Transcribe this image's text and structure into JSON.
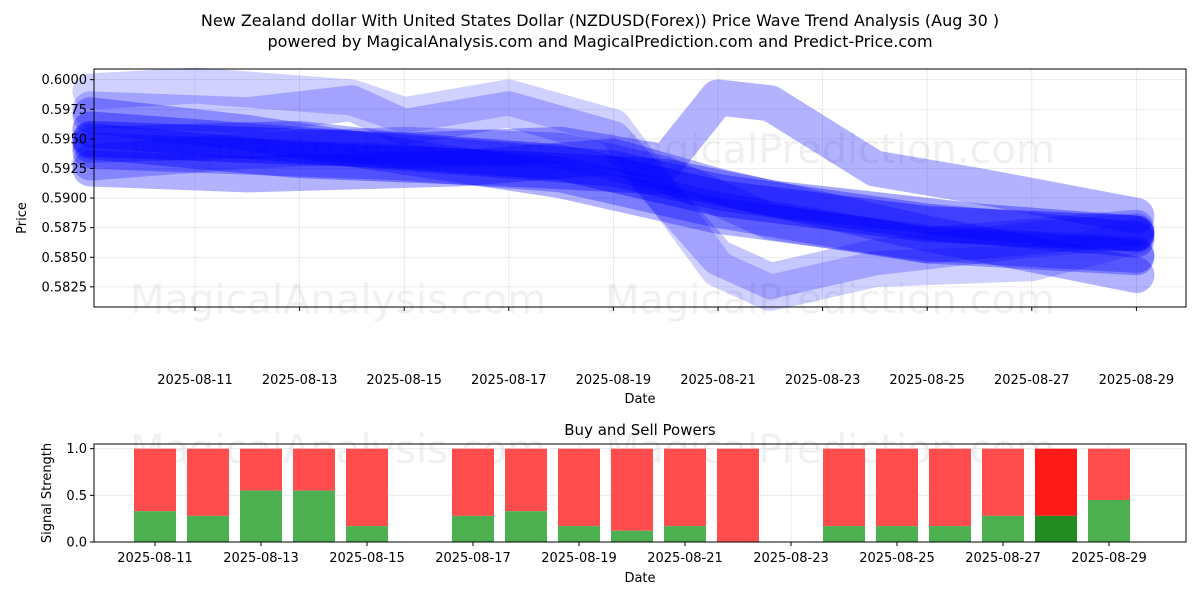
{
  "header": {
    "title": "New Zealand dollar With United States Dollar (NZDUSD(Forex)) Price Wave Trend Analysis (Aug 30 )",
    "subtitle": "powered by MagicalAnalysis.com and MagicalPrediction.com and Predict-Price.com"
  },
  "watermarks": [
    "MagicalAnalysis.com",
    "MagicalPrediction.com"
  ],
  "colors": {
    "wave": "#0000ff",
    "buy": "#4caf50",
    "sell": "#ff4d4d",
    "buy_strong": "#228b22",
    "sell_strong": "#ff1a1a"
  },
  "chart_data": [
    {
      "type": "line",
      "xlabel": "Date",
      "ylabel": "Price",
      "ylim": [
        0.5808,
        0.6009
      ],
      "yticks": [
        "0.5825",
        "0.5850",
        "0.5875",
        "0.5900",
        "0.5925",
        "0.5950",
        "0.5975",
        "0.6000"
      ],
      "xticks": [
        "2025-08-11",
        "2025-08-13",
        "2025-08-15",
        "2025-08-17",
        "2025-08-19",
        "2025-08-21",
        "2025-08-23",
        "2025-08-25",
        "2025-08-27",
        "2025-08-29"
      ],
      "grid": true,
      "series": [
        {
          "opacity": 0.35,
          "points": [
            [
              "2025-08-09",
              0.5948
            ],
            [
              "2025-08-13",
              0.5932
            ],
            [
              "2025-08-17",
              0.5925
            ],
            [
              "2025-08-20",
              0.5918
            ],
            [
              "2025-08-22",
              0.59
            ],
            [
              "2025-08-26",
              0.588
            ],
            [
              "2025-08-29",
              0.587
            ]
          ]
        },
        {
          "opacity": 0.35,
          "points": [
            [
              "2025-08-09",
              0.5958
            ],
            [
              "2025-08-13",
              0.5945
            ],
            [
              "2025-08-16",
              0.5935
            ],
            [
              "2025-08-19",
              0.5925
            ],
            [
              "2025-08-21",
              0.5905
            ],
            [
              "2025-08-25",
              0.588
            ],
            [
              "2025-08-29",
              0.5865
            ]
          ]
        },
        {
          "opacity": 0.3,
          "points": [
            [
              "2025-08-09",
              0.594
            ],
            [
              "2025-08-12",
              0.5935
            ],
            [
              "2025-08-15",
              0.593
            ],
            [
              "2025-08-18",
              0.592
            ],
            [
              "2025-08-21",
              0.589
            ],
            [
              "2025-08-25",
              0.586
            ],
            [
              "2025-08-29",
              0.585
            ]
          ]
        },
        {
          "opacity": 0.3,
          "points": [
            [
              "2025-08-09",
              0.597
            ],
            [
              "2025-08-12",
              0.5955
            ],
            [
              "2025-08-15",
              0.5935
            ],
            [
              "2025-08-18",
              0.5915
            ],
            [
              "2025-08-21",
              0.5885
            ],
            [
              "2025-08-25",
              0.5862
            ],
            [
              "2025-08-29",
              0.5852
            ]
          ]
        },
        {
          "opacity": 0.3,
          "points": [
            [
              "2025-08-09",
              0.5925
            ],
            [
              "2025-08-12",
              0.592
            ],
            [
              "2025-08-16",
              0.5925
            ],
            [
              "2025-08-19",
              0.5935
            ],
            [
              "2025-08-21",
              0.591
            ],
            [
              "2025-08-25",
              0.587
            ],
            [
              "2025-08-29",
              0.5835
            ]
          ]
        },
        {
          "opacity": 0.3,
          "points": [
            [
              "2025-08-09",
              0.5945
            ],
            [
              "2025-08-13",
              0.595
            ],
            [
              "2025-08-15",
              0.594
            ],
            [
              "2025-08-18",
              0.5945
            ],
            [
              "2025-08-20",
              0.593
            ],
            [
              "2025-08-21",
              0.5985
            ],
            [
              "2025-08-22",
              0.598
            ],
            [
              "2025-08-24",
              0.5925
            ],
            [
              "2025-08-26",
              0.591
            ],
            [
              "2025-08-29",
              0.5885
            ]
          ]
        },
        {
          "opacity": 0.22,
          "points": [
            [
              "2025-08-09",
              0.5975
            ],
            [
              "2025-08-12",
              0.597
            ],
            [
              "2025-08-14",
              0.598
            ],
            [
              "2025-08-15",
              0.596
            ],
            [
              "2025-08-17",
              0.5975
            ],
            [
              "2025-08-19",
              0.595
            ],
            [
              "2025-08-21",
              0.585
            ],
            [
              "2025-08-22",
              0.583
            ],
            [
              "2025-08-24",
              0.585
            ],
            [
              "2025-08-27",
              0.5865
            ],
            [
              "2025-08-29",
              0.5872
            ]
          ]
        },
        {
          "opacity": 0.18,
          "points": [
            [
              "2025-08-09",
              0.599
            ],
            [
              "2025-08-11",
              0.5995
            ],
            [
              "2025-08-14",
              0.5985
            ],
            [
              "2025-08-15",
              0.597
            ],
            [
              "2025-08-17",
              0.5985
            ],
            [
              "2025-08-19",
              0.596
            ],
            [
              "2025-08-20",
              0.59
            ],
            [
              "2025-08-21",
              0.584
            ],
            [
              "2025-08-22",
              0.582
            ],
            [
              "2025-08-24",
              0.584
            ],
            [
              "2025-08-27",
              0.5845
            ],
            [
              "2025-08-29",
              0.5868
            ]
          ]
        },
        {
          "opacity": 0.25,
          "points": [
            [
              "2025-08-09",
              0.593
            ],
            [
              "2025-08-12",
              0.594
            ],
            [
              "2025-08-15",
              0.5945
            ],
            [
              "2025-08-18",
              0.594
            ],
            [
              "2025-08-20",
              0.592
            ],
            [
              "2025-08-22",
              0.588
            ],
            [
              "2025-08-25",
              0.586
            ],
            [
              "2025-08-29",
              0.5875
            ]
          ]
        },
        {
          "opacity": 0.4,
          "points": [
            [
              "2025-08-09",
              0.595
            ],
            [
              "2025-08-12",
              0.5945
            ],
            [
              "2025-08-15",
              0.594
            ],
            [
              "2025-08-18",
              0.593
            ],
            [
              "2025-08-21",
              0.59
            ],
            [
              "2025-08-25",
              0.5878
            ],
            [
              "2025-08-29",
              0.587
            ]
          ]
        }
      ]
    },
    {
      "type": "bar",
      "title": "Buy and Sell Powers",
      "xlabel": "Date",
      "ylabel": "Signal Strength",
      "ylim": [
        0,
        1.05
      ],
      "yticks": [
        "0.0",
        "0.5",
        "1.0"
      ],
      "xticks": [
        "2025-08-11",
        "2025-08-13",
        "2025-08-15",
        "2025-08-17",
        "2025-08-19",
        "2025-08-21",
        "2025-08-23",
        "2025-08-25",
        "2025-08-27",
        "2025-08-29"
      ],
      "categories": [
        "2025-08-11",
        "2025-08-12",
        "2025-08-13",
        "2025-08-14",
        "2025-08-15",
        "2025-08-17",
        "2025-08-18",
        "2025-08-19",
        "2025-08-20",
        "2025-08-21",
        "2025-08-22",
        "2025-08-24",
        "2025-08-25",
        "2025-08-26",
        "2025-08-27",
        "2025-08-28",
        "2025-08-29"
      ],
      "series": [
        {
          "name": "buy",
          "values": [
            0.33,
            0.28,
            0.55,
            0.55,
            0.17,
            0.28,
            0.33,
            0.17,
            0.12,
            0.17,
            0.0,
            0.17,
            0.17,
            0.17,
            0.28,
            0.28,
            0.45
          ]
        },
        {
          "name": "sell",
          "values": [
            0.67,
            0.72,
            0.45,
            0.45,
            0.83,
            0.72,
            0.67,
            0.83,
            0.88,
            0.83,
            1.0,
            0.83,
            0.83,
            0.83,
            0.72,
            0.72,
            0.55
          ]
        }
      ],
      "highlight": "2025-08-28"
    }
  ]
}
